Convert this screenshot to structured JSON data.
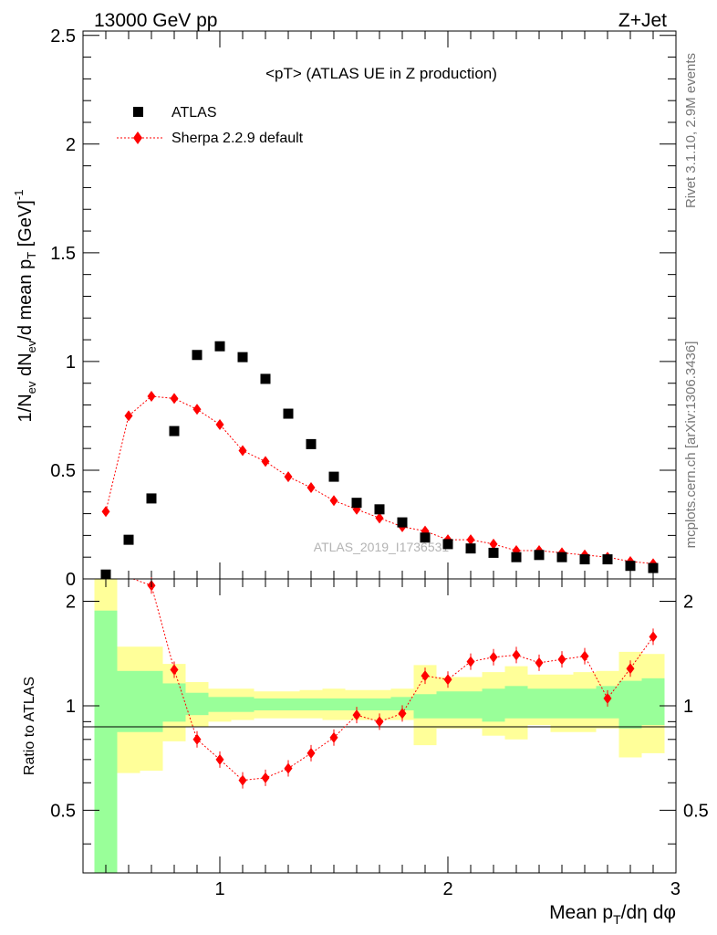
{
  "header": {
    "left": "13000 GeV pp",
    "right": "Z+Jet"
  },
  "side_labels": {
    "rivet": "Rivet 3.1.10,  2.9M events",
    "mcplots": "mcplots.cern.ch [arXiv:1306.3436]"
  },
  "watermark": "ATLAS_2019_I1736531",
  "chart_data": [
    {
      "type": "scatter",
      "title": "<pT> (ATLAS UE in Z production)",
      "xlabel": "Mean p_T/dη dφ",
      "ylabel": "1/N_ev dN_ev/d mean p_T [GeV]^-1",
      "xlim": [
        0.4,
        3.0
      ],
      "ylim": [
        0,
        2.52
      ],
      "yticks": [
        0,
        0.5,
        1,
        1.5,
        2,
        2.5
      ],
      "ytick_labels": [
        "0",
        "0.5",
        "1",
        "1.5",
        "2",
        "2.5"
      ],
      "legend_position": "top-left",
      "series": [
        {
          "name": "ATLAS",
          "marker": "square",
          "color": "#000000",
          "x": [
            0.5,
            0.6,
            0.7,
            0.8,
            0.9,
            1.0,
            1.1,
            1.2,
            1.3,
            1.4,
            1.5,
            1.6,
            1.7,
            1.8,
            1.9,
            2.0,
            2.1,
            2.2,
            2.3,
            2.4,
            2.5,
            2.6,
            2.7,
            2.8,
            2.9
          ],
          "y": [
            0.02,
            0.18,
            0.37,
            0.68,
            1.03,
            1.07,
            1.02,
            0.92,
            0.76,
            0.62,
            0.47,
            0.35,
            0.32,
            0.26,
            0.19,
            0.16,
            0.14,
            0.12,
            0.1,
            0.11,
            0.1,
            0.09,
            0.09,
            0.06,
            0.05
          ]
        },
        {
          "name": "Sherpa 2.2.9 default",
          "marker": "diamond",
          "color": "#ff0000",
          "x": [
            0.5,
            0.6,
            0.7,
            0.8,
            0.9,
            1.0,
            1.1,
            1.2,
            1.3,
            1.4,
            1.5,
            1.6,
            1.7,
            1.8,
            1.9,
            2.0,
            2.1,
            2.2,
            2.3,
            2.4,
            2.5,
            2.6,
            2.7,
            2.8,
            2.9
          ],
          "y": [
            0.31,
            0.75,
            0.84,
            0.83,
            0.78,
            0.71,
            0.59,
            0.54,
            0.47,
            0.42,
            0.36,
            0.32,
            0.28,
            0.24,
            0.22,
            0.18,
            0.18,
            0.16,
            0.13,
            0.13,
            0.12,
            0.11,
            0.1,
            0.08,
            0.07
          ]
        }
      ]
    },
    {
      "type": "scatter",
      "ylabel": "Ratio to ATLAS",
      "xlim": [
        0.4,
        3.0
      ],
      "ylim": [
        0.33,
        2.32
      ],
      "xticks": [
        1,
        2,
        3
      ],
      "xtick_labels": [
        "1",
        "2",
        "3"
      ],
      "yticks": [
        0.5,
        1,
        2
      ],
      "ytick_labels": [
        "0.5",
        "1",
        "2"
      ],
      "reference_line": 1,
      "uncertainty_bands": {
        "bin_edges": [
          0.45,
          0.55,
          0.65,
          0.75,
          0.85,
          0.95,
          1.05,
          1.15,
          1.25,
          1.35,
          1.45,
          1.55,
          1.65,
          1.75,
          1.85,
          1.95,
          2.05,
          2.15,
          2.25,
          2.35,
          2.45,
          2.55,
          2.65,
          2.75,
          2.85,
          2.95
        ],
        "stat_color": "#99ff99",
        "total_color": "#ffff99",
        "stat_lo": [
          0.33,
          0.84,
          0.84,
          0.9,
          0.94,
          0.96,
          0.96,
          0.97,
          0.97,
          0.97,
          0.97,
          0.97,
          0.97,
          0.97,
          0.92,
          0.92,
          0.92,
          0.9,
          0.92,
          0.92,
          0.92,
          0.92,
          0.92,
          0.86,
          0.88
        ],
        "stat_hi": [
          1.88,
          1.26,
          1.26,
          1.16,
          1.09,
          1.06,
          1.06,
          1.05,
          1.05,
          1.05,
          1.05,
          1.05,
          1.05,
          1.06,
          1.08,
          1.1,
          1.1,
          1.12,
          1.14,
          1.12,
          1.12,
          1.12,
          1.14,
          1.18,
          1.2
        ],
        "total_lo": [
          0.33,
          0.64,
          0.65,
          0.79,
          0.87,
          0.9,
          0.91,
          0.92,
          0.92,
          0.92,
          0.91,
          0.91,
          0.91,
          0.91,
          0.77,
          0.86,
          0.86,
          0.82,
          0.8,
          0.88,
          0.84,
          0.84,
          0.86,
          0.71,
          0.73
        ],
        "total_hi": [
          2.32,
          1.48,
          1.48,
          1.32,
          1.17,
          1.12,
          1.12,
          1.1,
          1.1,
          1.11,
          1.12,
          1.11,
          1.11,
          1.12,
          1.31,
          1.21,
          1.21,
          1.25,
          1.3,
          1.23,
          1.23,
          1.25,
          1.26,
          1.43,
          1.41
        ]
      },
      "series": [
        {
          "name": "Sherpa 2.2.9 default",
          "marker": "diamond",
          "color": "#ff0000",
          "x": [
            0.7,
            0.8,
            0.9,
            1.0,
            1.1,
            1.2,
            1.3,
            1.4,
            1.5,
            1.6,
            1.7,
            1.8,
            1.9,
            2.0,
            2.1,
            2.2,
            2.3,
            2.4,
            2.5,
            2.6,
            2.7,
            2.8,
            2.9
          ],
          "y": [
            2.22,
            1.27,
            0.8,
            0.7,
            0.61,
            0.62,
            0.66,
            0.73,
            0.81,
            0.94,
            0.9,
            0.95,
            1.22,
            1.19,
            1.34,
            1.38,
            1.4,
            1.33,
            1.36,
            1.39,
            1.05,
            1.28,
            1.58
          ]
        }
      ]
    }
  ]
}
